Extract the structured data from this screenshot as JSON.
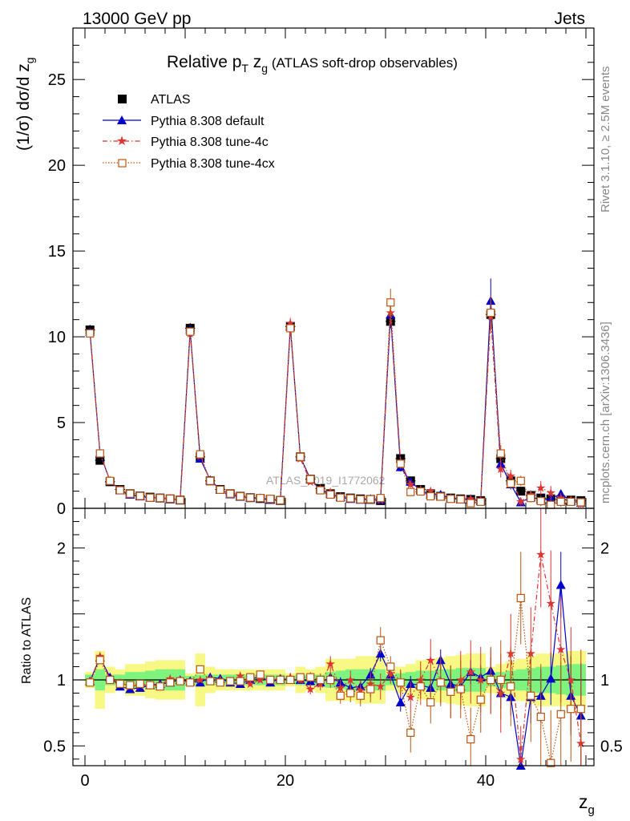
{
  "header": {
    "left": "13000 GeV pp",
    "right": "Jets",
    "rivet": "Rivet 3.1.10, ≥ 2.5M events",
    "mcplots": "mcplots.cern.ch [arXiv:1306.3436]",
    "watermark": "ATLAS_2019_I1772062"
  },
  "chart_data": [
    {
      "type": "line",
      "title": "Relative pT zg (ATLAS soft-drop observables)",
      "title_main": "Relative p",
      "title_sub": "T",
      "title_var": " z",
      "title_var_sub": "g",
      "title_rest": " (ATLAS soft-drop observables)",
      "ylabel": "(1/σ) dσ/d z",
      "ylabel_sub": "g",
      "xlim": [
        -1.2,
        50.8
      ],
      "ylim": [
        0,
        28
      ],
      "yticks": [
        0,
        5,
        10,
        15,
        20,
        25
      ],
      "xticks": [
        0,
        20,
        40
      ],
      "x": [
        0.5,
        1.5,
        2.5,
        3.5,
        4.5,
        5.5,
        6.5,
        7.5,
        8.5,
        9.5,
        10.5,
        11.5,
        12.5,
        13.5,
        14.5,
        15.5,
        16.5,
        17.5,
        18.5,
        19.5,
        20.5,
        21.5,
        22.5,
        23.5,
        24.5,
        25.5,
        26.5,
        27.5,
        28.5,
        29.5,
        30.5,
        31.5,
        32.5,
        33.5,
        34.5,
        35.5,
        36.5,
        37.5,
        38.5,
        39.5,
        40.5,
        41.5,
        42.5,
        43.5,
        44.5,
        45.5,
        46.5,
        47.5,
        48.5,
        49.5
      ],
      "series": [
        {
          "name": "ATLAS",
          "color": "#000000",
          "marker": "square",
          "values": [
            10.4,
            2.8,
            1.55,
            1.1,
            0.85,
            0.72,
            0.65,
            0.6,
            0.55,
            0.48,
            10.5,
            3.0,
            1.6,
            1.1,
            0.85,
            0.7,
            0.62,
            0.57,
            0.52,
            0.46,
            10.6,
            3.0,
            1.7,
            1.15,
            0.85,
            0.68,
            0.6,
            0.55,
            0.52,
            0.45,
            10.9,
            2.9,
            1.6,
            1.1,
            0.85,
            0.7,
            0.6,
            0.55,
            0.52,
            0.45,
            11.3,
            2.9,
            1.6,
            1.0,
            0.75,
            0.6,
            0.55,
            0.5,
            0.48,
            0.45
          ],
          "errors": [
            0.3,
            0.15,
            0.1,
            0.08,
            0.06,
            0.05,
            0.05,
            0.05,
            0.05,
            0.05,
            0.3,
            0.15,
            0.1,
            0.08,
            0.06,
            0.05,
            0.05,
            0.05,
            0.05,
            0.05,
            0.3,
            0.15,
            0.1,
            0.08,
            0.06,
            0.05,
            0.05,
            0.05,
            0.05,
            0.05,
            0.4,
            0.2,
            0.12,
            0.08,
            0.06,
            0.05,
            0.05,
            0.05,
            0.05,
            0.05,
            0.5,
            0.25,
            0.15,
            0.1,
            0.08,
            0.06,
            0.05,
            0.05,
            0.05,
            0.05
          ]
        },
        {
          "name": "Pythia 8.308 default",
          "color": "#0000cc",
          "marker": "triangle",
          "values": [
            10.3,
            3.2,
            1.6,
            1.05,
            0.8,
            0.7,
            0.62,
            0.6,
            0.55,
            0.5,
            10.4,
            2.9,
            1.65,
            1.1,
            0.82,
            0.68,
            0.62,
            0.59,
            0.51,
            0.47,
            10.6,
            3.0,
            1.7,
            1.1,
            0.85,
            0.65,
            0.55,
            0.5,
            0.55,
            0.5,
            11.3,
            2.4,
            1.55,
            1.05,
            0.8,
            0.8,
            0.58,
            0.52,
            0.55,
            0.46,
            12.1,
            2.6,
            1.4,
            0.35,
            0.65,
            0.5,
            0.55,
            0.85,
            0.42,
            0.33
          ],
          "errors": [
            0.1,
            0.08,
            0.05,
            0.04,
            0.04,
            0.03,
            0.03,
            0.03,
            0.03,
            0.03,
            0.1,
            0.08,
            0.05,
            0.04,
            0.04,
            0.03,
            0.03,
            0.03,
            0.03,
            0.03,
            0.12,
            0.08,
            0.06,
            0.05,
            0.04,
            0.04,
            0.04,
            0.04,
            0.04,
            0.04,
            0.5,
            0.25,
            0.15,
            0.1,
            0.08,
            0.07,
            0.06,
            0.06,
            0.06,
            0.06,
            1.3,
            0.5,
            0.3,
            0.2,
            0.15,
            0.15,
            0.15,
            0.2,
            0.15,
            0.15
          ]
        },
        {
          "name": "Pythia 8.308 tune-4c",
          "color": "#dd3333",
          "marker": "star",
          "values": [
            10.2,
            3.25,
            1.6,
            1.08,
            0.82,
            0.7,
            0.63,
            0.58,
            0.56,
            0.48,
            10.2,
            3.05,
            1.62,
            1.08,
            0.85,
            0.72,
            0.6,
            0.56,
            0.52,
            0.47,
            10.8,
            2.9,
            1.55,
            1.15,
            0.95,
            0.68,
            0.6,
            0.5,
            0.5,
            0.5,
            11.4,
            2.7,
            1.4,
            1.1,
            1.0,
            0.7,
            0.6,
            0.5,
            0.55,
            0.45,
            11.2,
            2.3,
            1.9,
            0.4,
            0.8,
            1.2,
            0.9,
            0.6,
            0.48,
            0.25
          ],
          "errors": [
            0.1,
            0.08,
            0.05,
            0.04,
            0.04,
            0.03,
            0.03,
            0.03,
            0.03,
            0.03,
            0.1,
            0.08,
            0.05,
            0.04,
            0.04,
            0.03,
            0.03,
            0.03,
            0.03,
            0.03,
            0.3,
            0.12,
            0.1,
            0.08,
            0.08,
            0.06,
            0.06,
            0.06,
            0.06,
            0.06,
            0.6,
            0.3,
            0.2,
            0.15,
            0.12,
            0.1,
            0.1,
            0.1,
            0.1,
            0.1,
            1.0,
            0.5,
            0.35,
            0.25,
            0.25,
            0.4,
            0.4,
            0.3,
            0.2,
            0.2
          ]
        },
        {
          "name": "Pythia 8.308 tune-4cx",
          "color": "#bb5511",
          "marker": "open-square",
          "values": [
            10.2,
            3.2,
            1.6,
            1.05,
            0.85,
            0.72,
            0.62,
            0.6,
            0.56,
            0.48,
            10.3,
            3.15,
            1.6,
            1.08,
            0.85,
            0.7,
            0.62,
            0.6,
            0.55,
            0.47,
            10.5,
            3.0,
            1.7,
            1.05,
            0.8,
            0.62,
            0.58,
            0.52,
            0.53,
            0.6,
            12.0,
            2.6,
            0.95,
            0.98,
            0.7,
            0.68,
            0.55,
            0.52,
            0.3,
            0.38,
            11.4,
            3.2,
            1.45,
            1.6,
            0.6,
            0.42,
            0.2,
            0.38,
            0.38,
            0.35
          ],
          "errors": [
            0.1,
            0.08,
            0.05,
            0.04,
            0.04,
            0.03,
            0.03,
            0.03,
            0.03,
            0.03,
            0.1,
            0.08,
            0.05,
            0.04,
            0.04,
            0.03,
            0.03,
            0.03,
            0.03,
            0.03,
            0.3,
            0.12,
            0.1,
            0.08,
            0.08,
            0.06,
            0.06,
            0.06,
            0.06,
            0.06,
            0.8,
            0.3,
            0.2,
            0.15,
            0.12,
            0.1,
            0.1,
            0.1,
            0.1,
            0.1,
            1.0,
            0.5,
            0.35,
            0.3,
            0.25,
            0.3,
            0.3,
            0.3,
            0.2,
            0.2
          ]
        }
      ]
    },
    {
      "type": "line",
      "ylabel": "Ratio to ATLAS",
      "xlabel": "z",
      "xlabel_sub": "g",
      "xlim": [
        -1.2,
        50.8
      ],
      "ylim": [
        0.35,
        2.3
      ],
      "yticks": [
        0.5,
        1,
        2
      ],
      "ytick_labels": [
        "0.5",
        "1",
        "2"
      ],
      "xticks": [
        0,
        20,
        40
      ],
      "band_colors": {
        "stat": "#7ef47e",
        "total": "#f8f884"
      },
      "bands": {
        "stat_half_width": [
          0.04,
          0.08,
          0.04,
          0.04,
          0.06,
          0.06,
          0.07,
          0.08,
          0.08,
          0.08,
          0.03,
          0.04,
          0.04,
          0.04,
          0.04,
          0.04,
          0.04,
          0.04,
          0.04,
          0.04,
          0.03,
          0.04,
          0.04,
          0.04,
          0.06,
          0.07,
          0.08,
          0.08,
          0.08,
          0.08,
          0.04,
          0.05,
          0.06,
          0.07,
          0.07,
          0.08,
          0.08,
          0.09,
          0.09,
          0.09,
          0.05,
          0.06,
          0.07,
          0.08,
          0.09,
          0.1,
          0.1,
          0.11,
          0.12,
          0.12
        ],
        "total_half_width": [
          0.06,
          0.22,
          0.1,
          0.08,
          0.12,
          0.12,
          0.14,
          0.15,
          0.15,
          0.15,
          0.05,
          0.2,
          0.1,
          0.08,
          0.08,
          0.08,
          0.08,
          0.08,
          0.08,
          0.08,
          0.05,
          0.1,
          0.08,
          0.1,
          0.16,
          0.16,
          0.16,
          0.18,
          0.18,
          0.18,
          0.08,
          0.1,
          0.12,
          0.15,
          0.16,
          0.17,
          0.18,
          0.19,
          0.2,
          0.2,
          0.1,
          0.12,
          0.14,
          0.16,
          0.18,
          0.2,
          0.2,
          0.2,
          0.22,
          0.22
        ]
      },
      "series": [
        {
          "name": "Pythia 8.308 default",
          "color": "#0000cc",
          "values": [
            0.99,
            1.17,
            1.02,
            0.95,
            0.93,
            0.94,
            0.96,
            0.97,
            0.98,
            1.0,
            0.99,
            0.98,
            1.02,
            1.01,
            0.98,
            0.97,
            1.0,
            1.03,
            0.98,
            1.01,
            1.0,
            1.0,
            0.99,
            0.98,
            1.02,
            0.98,
            0.94,
            0.95,
            1.04,
            1.2,
            1.04,
            0.83,
            0.97,
            0.96,
            0.94,
            1.15,
            0.97,
            0.95,
            1.06,
            1.02,
            1.07,
            0.9,
            0.87,
            0.35,
            0.87,
            0.88,
            1.01,
            1.72,
            0.88,
            0.73
          ],
          "errors": [
            0.02,
            0.03,
            0.02,
            0.02,
            0.02,
            0.02,
            0.02,
            0.02,
            0.02,
            0.02,
            0.02,
            0.02,
            0.02,
            0.02,
            0.02,
            0.02,
            0.02,
            0.02,
            0.02,
            0.02,
            0.02,
            0.02,
            0.03,
            0.03,
            0.03,
            0.04,
            0.04,
            0.05,
            0.05,
            0.06,
            0.05,
            0.07,
            0.06,
            0.07,
            0.07,
            0.08,
            0.08,
            0.09,
            0.09,
            0.09,
            0.1,
            0.12,
            0.14,
            0.15,
            0.2,
            0.2,
            0.2,
            0.25,
            0.3,
            0.4
          ]
        },
        {
          "name": "Pythia 8.308 tune-4c",
          "color": "#dd3333",
          "values": [
            0.99,
            1.18,
            1.0,
            0.98,
            0.95,
            0.96,
            0.96,
            0.96,
            1.01,
            1.0,
            0.98,
            1.0,
            1.01,
            1.0,
            0.99,
            1.03,
            0.97,
            1.0,
            1.0,
            1.01,
            1.02,
            1.0,
            0.93,
            0.97,
            1.12,
            0.94,
            1.0,
            0.92,
            0.97,
            0.95,
            1.05,
            0.97,
            0.87,
            1.0,
            1.15,
            1.0,
            0.91,
            1.0,
            1.06,
            1.0,
            0.99,
            0.9,
            1.2,
            0.4,
            1.2,
            1.95,
            1.58,
            1.23,
            1.0,
            0.52
          ],
          "errors": [
            0.02,
            0.03,
            0.02,
            0.02,
            0.02,
            0.02,
            0.02,
            0.02,
            0.02,
            0.02,
            0.02,
            0.02,
            0.02,
            0.02,
            0.02,
            0.02,
            0.02,
            0.02,
            0.02,
            0.02,
            0.03,
            0.03,
            0.04,
            0.05,
            0.06,
            0.06,
            0.07,
            0.08,
            0.1,
            0.1,
            0.08,
            0.1,
            0.12,
            0.14,
            0.16,
            0.18,
            0.2,
            0.22,
            0.24,
            0.25,
            0.25,
            0.3,
            0.3,
            0.25,
            0.35,
            0.4,
            0.4,
            0.4,
            0.4,
            0.45
          ]
        },
        {
          "name": "Pythia 8.308 tune-4cx",
          "color": "#bb5511",
          "values": [
            0.98,
            1.15,
            1.0,
            0.97,
            0.96,
            0.97,
            0.96,
            0.95,
            0.98,
            0.99,
            0.98,
            1.08,
            0.99,
            0.98,
            0.99,
            0.99,
            1.02,
            1.04,
            1.0,
            1.0,
            1.0,
            1.02,
            1.02,
            1.0,
            1.0,
            0.88,
            0.9,
            0.88,
            0.93,
            1.3,
            1.1,
            0.98,
            0.6,
            0.95,
            0.83,
            0.98,
            0.91,
            0.93,
            0.55,
            0.85,
            1.0,
            1.0,
            0.95,
            1.62,
            0.88,
            0.72,
            0.37,
            0.74,
            0.78,
            0.78
          ],
          "errors": [
            0.02,
            0.03,
            0.02,
            0.02,
            0.02,
            0.02,
            0.02,
            0.02,
            0.02,
            0.02,
            0.02,
            0.02,
            0.02,
            0.02,
            0.02,
            0.02,
            0.02,
            0.02,
            0.02,
            0.02,
            0.03,
            0.03,
            0.04,
            0.05,
            0.06,
            0.06,
            0.07,
            0.08,
            0.1,
            0.1,
            0.08,
            0.1,
            0.15,
            0.14,
            0.16,
            0.18,
            0.2,
            0.22,
            0.24,
            0.25,
            0.25,
            0.3,
            0.3,
            0.35,
            0.35,
            0.4,
            0.4,
            0.4,
            0.4,
            0.45
          ]
        }
      ]
    }
  ]
}
